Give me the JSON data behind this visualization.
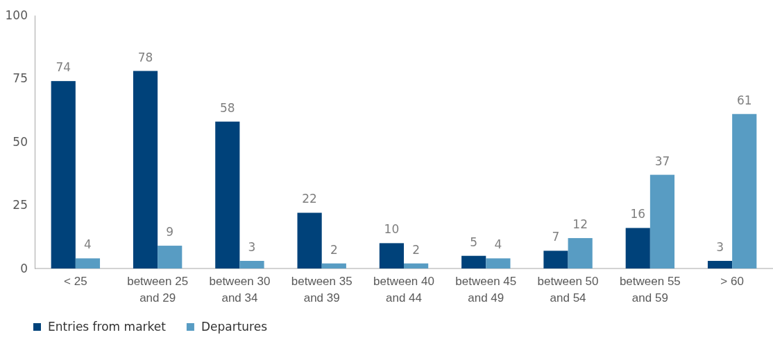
{
  "chart_data": {
    "type": "bar",
    "categories": [
      "< 25",
      "between 25 and 29",
      "between 30 and 34",
      "between 35 and 39",
      "between 40 and 44",
      "between 45 and 49",
      "between 50 and 54",
      "between 55 and 59",
      "> 60"
    ],
    "series": [
      {
        "name": "Entries from market",
        "color": "#00427a",
        "values": [
          74,
          78,
          58,
          22,
          10,
          5,
          7,
          16,
          3
        ]
      },
      {
        "name": "Departures",
        "color": "#589cc3",
        "values": [
          4,
          9,
          3,
          2,
          2,
          4,
          12,
          37,
          61
        ]
      }
    ],
    "ylim": [
      0,
      100
    ],
    "yticks": [
      0,
      25,
      50,
      75,
      100
    ],
    "grid": false,
    "legend": "bottom left",
    "data_labels": true
  }
}
